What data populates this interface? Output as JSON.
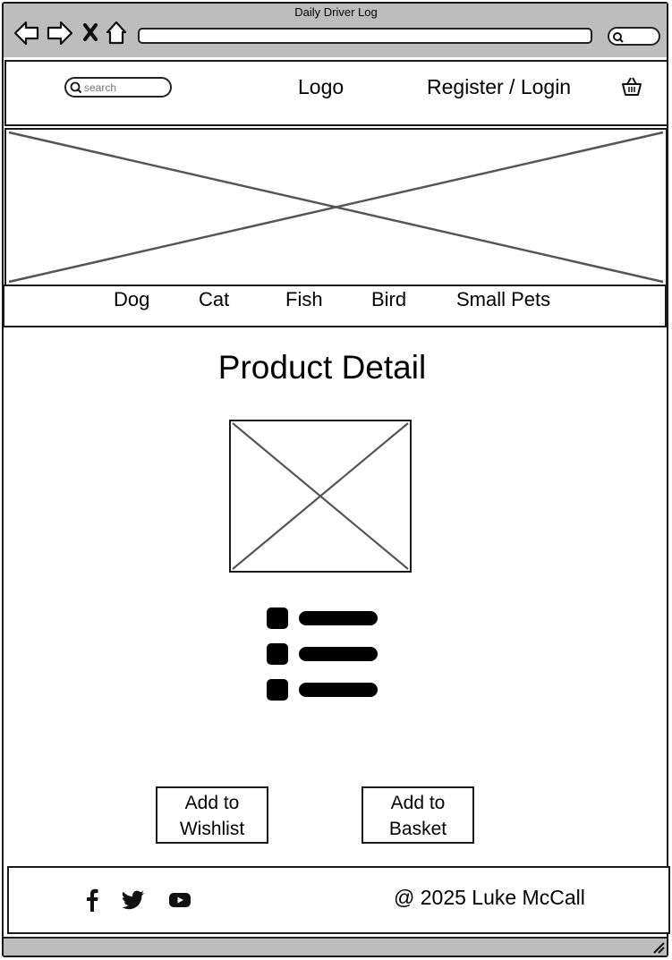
{
  "window": {
    "title": "Daily Driver Log"
  },
  "header": {
    "search_placeholder": "search",
    "logo": "Logo",
    "auth_link": "Register / Login"
  },
  "categories": [
    "Dog",
    "Cat",
    "Fish",
    "Bird",
    "Small Pets"
  ],
  "main": {
    "heading": "Product Detail"
  },
  "buttons": {
    "wishlist_line1": "Add to",
    "wishlist_line2": "Wishlist",
    "basket_line1": "Add to",
    "basket_line2": "Basket"
  },
  "footer": {
    "social_icons": [
      "facebook-icon",
      "twitter-icon",
      "youtube-icon"
    ],
    "copyright": "@ 2025 Luke McCall"
  }
}
